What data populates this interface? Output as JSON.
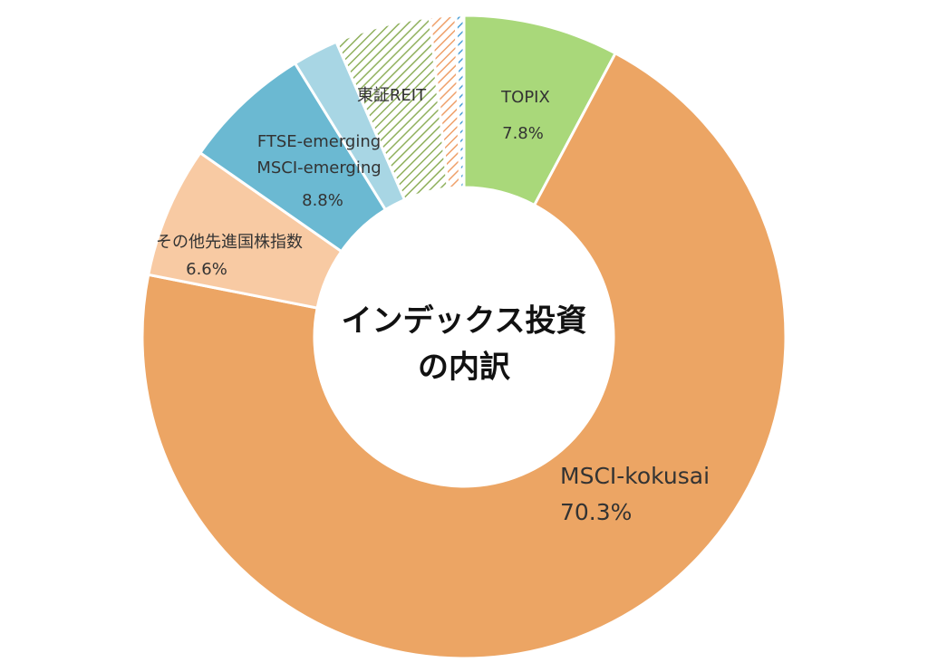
{
  "chart_data": {
    "type": "donut",
    "title_lines": [
      "インデックス投資",
      "の内訳"
    ],
    "categories": [
      "TOPIX",
      "MSCI-kokusai",
      "その他先進国株指数",
      "FTSE-emerging",
      "MSCI-emerging",
      "東証REIT",
      null,
      null
    ],
    "values": [
      7.8,
      70.3,
      6.6,
      6.5,
      2.3,
      4.8,
      1.3,
      0.4
    ],
    "value_labels": [
      "7.8%",
      "70.3%",
      "6.6%",
      null,
      null,
      null,
      null,
      null
    ],
    "colors": [
      "#a9d87a",
      "#eca564",
      "#f8caa3",
      "#6bb9d2",
      "#a8d6e4",
      "#8fb05c",
      "#efa06a",
      "#4a9fd6"
    ],
    "hatched": [
      false,
      false,
      false,
      false,
      false,
      true,
      true,
      true
    ],
    "group_labels": [
      {
        "members": [
          3,
          4
        ],
        "value": 8.8,
        "label": "8.8%"
      }
    ]
  }
}
